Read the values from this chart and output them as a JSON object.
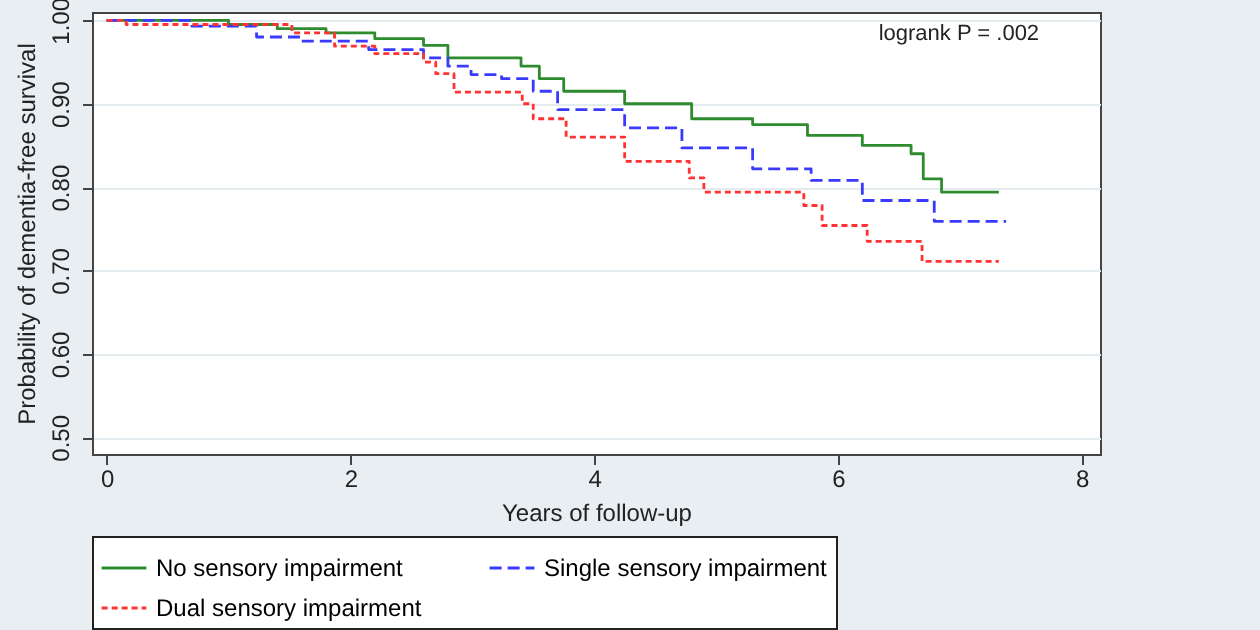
{
  "chart_data": {
    "type": "step",
    "xlabel": "Years of follow-up",
    "ylabel": "Probability of dementia-free survival",
    "annotations": [
      "logrank P = .002"
    ],
    "xlim": [
      -0.12,
      8.15
    ],
    "ylim": [
      0.48,
      1.01
    ],
    "xticks": [
      0,
      2,
      4,
      6,
      8
    ],
    "yticks": [
      {
        "value": 0.5,
        "label": "0.50"
      },
      {
        "value": 0.6,
        "label": "0.60"
      },
      {
        "value": 0.7,
        "label": "0.70"
      },
      {
        "value": 0.8,
        "label": "0.80"
      },
      {
        "value": 0.9,
        "label": "0.90"
      },
      {
        "value": 1.0,
        "label": "1.00"
      }
    ],
    "grid": "y",
    "legend": "bottom",
    "marker": "none",
    "series": [
      {
        "name": "No sensory impairment",
        "color": "#2e8b2e",
        "line_style": "solid",
        "x": [
          0,
          1.0,
          1.4,
          1.8,
          2.2,
          2.6,
          2.8,
          3.4,
          3.55,
          3.75,
          4.25,
          4.8,
          5.3,
          5.75,
          6.2,
          6.6,
          6.7,
          6.85,
          7.32
        ],
        "values": [
          1.0,
          0.995,
          0.99,
          0.985,
          0.978,
          0.97,
          0.955,
          0.945,
          0.93,
          0.915,
          0.9,
          0.882,
          0.875,
          0.862,
          0.85,
          0.84,
          0.81,
          0.794,
          0.794
        ]
      },
      {
        "name": "Single sensory impairment",
        "color": "#3a3aff",
        "line_style": "dashed",
        "x": [
          0,
          0.7,
          1.23,
          1.6,
          2.15,
          2.6,
          2.8,
          2.99,
          3.24,
          3.5,
          3.7,
          4.25,
          4.72,
          5.3,
          5.78,
          6.2,
          6.79,
          7.38
        ],
        "values": [
          1.0,
          0.993,
          0.98,
          0.975,
          0.965,
          0.955,
          0.945,
          0.935,
          0.93,
          0.915,
          0.893,
          0.871,
          0.847,
          0.822,
          0.808,
          0.784,
          0.759,
          0.759
        ]
      },
      {
        "name": "Dual sensory impairment",
        "color": "#ff3333",
        "line_style": "dotted",
        "x": [
          0,
          0.16,
          1.52,
          1.87,
          2.2,
          2.6,
          2.7,
          2.85,
          3.41,
          3.5,
          3.77,
          4.25,
          4.78,
          4.9,
          5.72,
          5.87,
          6.24,
          6.69,
          7.32
        ],
        "values": [
          1.0,
          0.995,
          0.985,
          0.969,
          0.96,
          0.95,
          0.936,
          0.914,
          0.9,
          0.882,
          0.86,
          0.831,
          0.811,
          0.794,
          0.778,
          0.754,
          0.735,
          0.711,
          0.711
        ]
      }
    ]
  }
}
